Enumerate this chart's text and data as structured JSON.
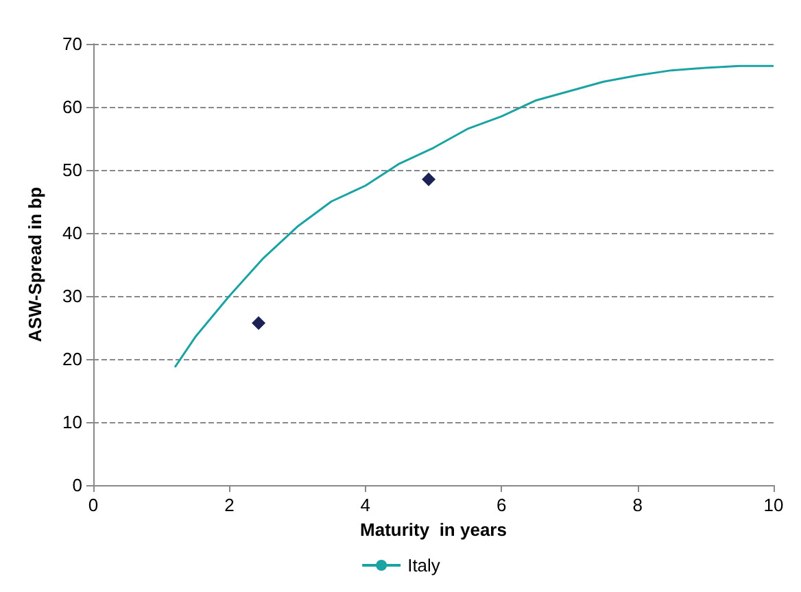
{
  "chart_data": {
    "type": "scatter",
    "xlabel": "Maturity  in years",
    "ylabel": "ASW-Spread in bp",
    "xlim": [
      0,
      10
    ],
    "xticks": [
      0,
      2,
      4,
      6,
      8,
      10
    ],
    "ylim": [
      0,
      70
    ],
    "yticks": [
      0,
      10,
      20,
      30,
      40,
      50,
      60,
      70
    ],
    "grid": "y",
    "legend": "bottom",
    "series": [
      {
        "color": "#1c2256",
        "marker": "diamond",
        "x": [
          2.43,
          4.93
        ],
        "values": [
          25.7,
          48.5
        ]
      },
      {
        "type": "line",
        "name": "Italy",
        "color": "#1ba3a3",
        "marker": "none",
        "x": [
          1.2,
          1.5,
          2,
          2.5,
          3,
          3.5,
          4,
          4.5,
          5,
          5.5,
          6,
          6.5,
          7,
          7.5,
          8,
          8.5,
          9,
          9.5,
          10
        ],
        "values": [
          18.7,
          23.5,
          30,
          36,
          41,
          45,
          47.5,
          51,
          53.5,
          56.5,
          58.5,
          61,
          62.5,
          64,
          65,
          65.8,
          66.2,
          66.5,
          66.5
        ]
      }
    ]
  }
}
